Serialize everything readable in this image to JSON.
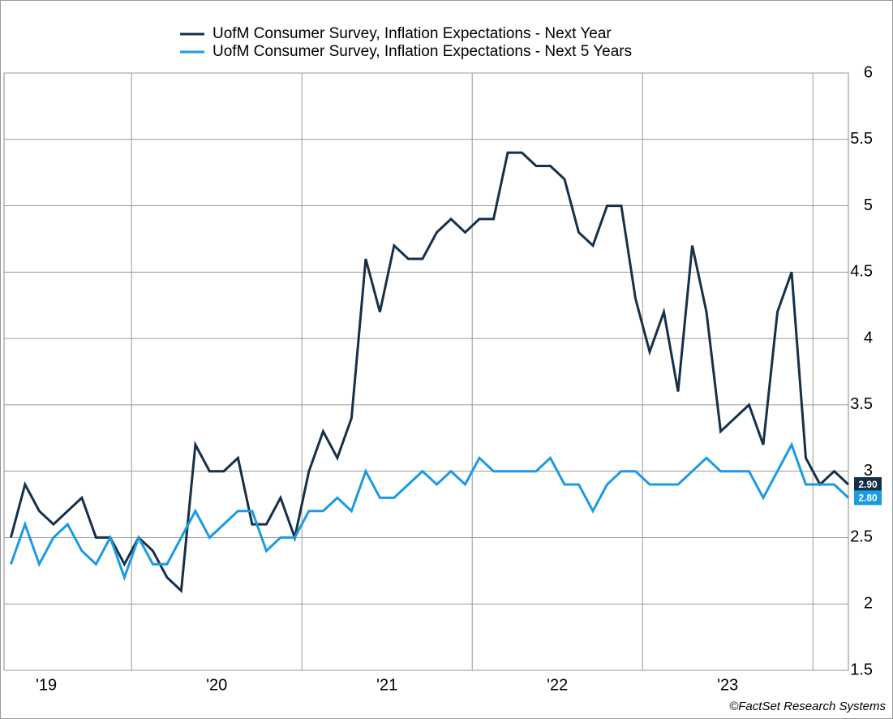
{
  "chart_data": {
    "type": "line",
    "x": [
      3,
      4,
      5,
      6,
      7,
      8,
      9,
      10,
      11,
      12,
      13,
      14,
      15,
      16,
      17,
      18,
      19,
      20,
      21,
      22,
      23,
      24,
      25,
      26,
      27,
      28,
      29,
      30,
      31,
      32,
      33,
      34,
      35,
      36,
      37,
      38,
      39,
      40,
      41,
      42,
      43,
      44,
      45,
      46,
      47,
      48,
      49,
      50,
      51,
      52,
      53,
      54,
      55,
      56,
      57,
      58,
      59,
      60,
      61,
      62
    ],
    "xlim": [
      2.52,
      62.0
    ],
    "xticks": [
      11.5,
      23.5,
      35.5,
      47.5,
      59.5
    ],
    "year_labels": [
      {
        "value": 5.5,
        "label": "'19"
      },
      {
        "value": 17.5,
        "label": "'20"
      },
      {
        "value": 29.5,
        "label": "'21"
      },
      {
        "value": 41.5,
        "label": "'22"
      },
      {
        "value": 53.5,
        "label": "'23"
      }
    ],
    "ylim": [
      1.5,
      6
    ],
    "yticks": [
      1.5,
      2,
      2.5,
      3,
      3.5,
      4,
      4.5,
      5,
      5.5,
      6
    ],
    "grid": true,
    "series": [
      {
        "name": "UofM Consumer Survey, Inflation Expectations - Next Year",
        "color": "#16304a",
        "values": [
          2.5,
          2.9,
          2.7,
          2.6,
          2.7,
          2.8,
          2.5,
          2.5,
          2.3,
          2.5,
          2.4,
          2.2,
          2.1,
          3.2,
          3.0,
          3.0,
          3.1,
          2.6,
          2.6,
          2.8,
          2.5,
          3.0,
          3.3,
          3.1,
          3.4,
          4.6,
          4.2,
          4.7,
          4.6,
          4.6,
          4.8,
          4.9,
          4.8,
          4.9,
          4.9,
          5.4,
          5.4,
          5.3,
          5.3,
          5.2,
          4.8,
          4.7,
          5.0,
          5.0,
          4.3,
          3.9,
          4.2,
          3.6,
          4.7,
          4.2,
          3.3,
          3.4,
          3.5,
          3.2,
          4.2,
          4.5,
          3.1,
          2.9,
          3.0,
          2.9
        ],
        "value_labels": [
          null,
          null,
          null,
          null,
          null,
          null,
          null,
          null,
          null,
          null,
          null,
          null,
          null,
          null,
          null,
          null,
          null,
          null,
          null,
          null,
          null,
          null,
          null,
          null,
          null,
          null,
          null,
          null,
          null,
          null,
          null,
          null,
          null,
          null,
          null,
          null,
          null,
          null,
          null,
          null,
          null,
          null,
          null,
          null,
          null,
          null,
          null,
          null,
          null,
          null,
          null,
          null,
          null,
          null,
          null,
          null,
          null,
          null,
          null,
          "2.90"
        ]
      },
      {
        "name": "UofM Consumer Survey, Inflation Expectations - Next 5 Years",
        "color": "#1a9be3",
        "values": [
          2.3,
          2.6,
          2.3,
          2.5,
          2.6,
          2.4,
          2.3,
          2.5,
          2.2,
          2.5,
          2.3,
          2.3,
          2.5,
          2.7,
          2.5,
          2.6,
          2.7,
          2.7,
          2.4,
          2.5,
          2.5,
          2.7,
          2.7,
          2.8,
          2.7,
          3.0,
          2.8,
          2.8,
          2.9,
          3.0,
          2.9,
          3.0,
          2.9,
          3.1,
          3.0,
          3.0,
          3.0,
          3.0,
          3.1,
          2.9,
          2.9,
          2.7,
          2.9,
          3.0,
          3.0,
          2.9,
          2.9,
          2.9,
          3.0,
          3.1,
          3.0,
          3.0,
          3.0,
          2.8,
          3.0,
          3.2,
          2.9,
          2.9,
          2.9,
          2.8
        ],
        "value_labels": [
          null,
          null,
          null,
          null,
          null,
          null,
          null,
          null,
          null,
          null,
          null,
          null,
          null,
          null,
          null,
          null,
          null,
          null,
          null,
          null,
          null,
          null,
          null,
          null,
          null,
          null,
          null,
          null,
          null,
          null,
          null,
          null,
          null,
          null,
          null,
          null,
          null,
          null,
          null,
          null,
          null,
          null,
          null,
          null,
          null,
          null,
          null,
          null,
          null,
          null,
          null,
          null,
          null,
          null,
          null,
          null,
          null,
          null,
          null,
          "2.80"
        ]
      }
    ],
    "source": "©FactSet Research Systems"
  }
}
